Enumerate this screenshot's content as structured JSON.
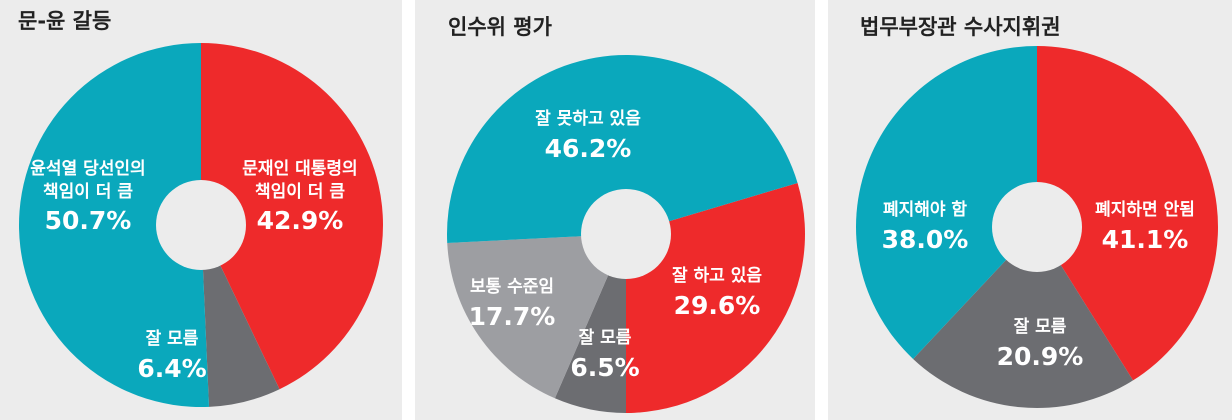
{
  "chart_data": [
    {
      "type": "pie",
      "donut": true,
      "title": "문-윤 갈등",
      "categories": [
        [
          "문재인 대통령의",
          "책임이 더 큼"
        ],
        [
          "잘 모름"
        ],
        [
          "윤석열 당선인의",
          "책임이 더 큼"
        ]
      ],
      "values": [
        42.9,
        6.4,
        50.7
      ],
      "value_labels": [
        "42.9%",
        "6.4%",
        "50.7%"
      ],
      "colors": [
        "#ee2a2b",
        "#6c6d71",
        "#0aa8bc"
      ]
    },
    {
      "type": "pie",
      "donut": true,
      "title": "인수위 평가",
      "categories": [
        [
          "잘 하고 있음"
        ],
        [
          "잘 모름"
        ],
        [
          "보통 수준임"
        ],
        [
          "잘 못하고 있음"
        ]
      ],
      "values": [
        29.6,
        6.5,
        17.7,
        46.2
      ],
      "value_labels": [
        "29.6%",
        "6.5%",
        "17.7%",
        "46.2%"
      ],
      "colors": [
        "#ee2a2b",
        "#6c6d71",
        "#9d9ea2",
        "#0aa8bc"
      ]
    },
    {
      "type": "pie",
      "donut": true,
      "title": "법무부장관 수사지휘권",
      "categories": [
        [
          "폐지하면 안됨"
        ],
        [
          "잘 모름"
        ],
        [
          "폐지해야 함"
        ]
      ],
      "values": [
        41.1,
        20.9,
        38.0
      ],
      "value_labels": [
        "41.1%",
        "20.9%",
        "38.0%"
      ],
      "colors": [
        "#ee2a2b",
        "#6c6d71",
        "#0aa8bc"
      ]
    }
  ]
}
